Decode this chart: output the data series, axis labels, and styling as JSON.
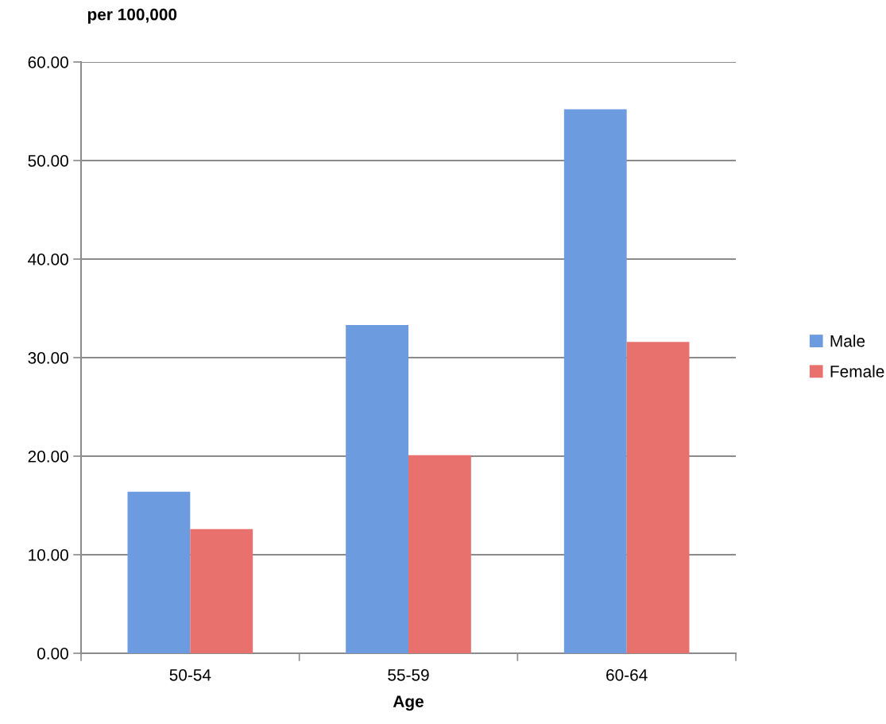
{
  "chart_data": {
    "type": "bar",
    "ylabel": "per 100,000",
    "xlabel": "Age",
    "categories": [
      "50-54",
      "55-59",
      "60-64"
    ],
    "series": [
      {
        "name": "Male",
        "color": "#6d9be0",
        "values": [
          16.4,
          33.3,
          55.2
        ]
      },
      {
        "name": "Female",
        "color": "#e8716e",
        "values": [
          12.6,
          20.1,
          31.6
        ]
      }
    ],
    "ylim": [
      0,
      60
    ],
    "yticks": [
      {
        "value": 0,
        "label": "0.00"
      },
      {
        "value": 10,
        "label": "10.00"
      },
      {
        "value": 20,
        "label": "20.00"
      },
      {
        "value": 30,
        "label": "30.00"
      },
      {
        "value": 40,
        "label": "40.00"
      },
      {
        "value": 50,
        "label": "50.00"
      },
      {
        "value": 60,
        "label": "60.00"
      }
    ],
    "grid": "y",
    "legend": "right"
  }
}
